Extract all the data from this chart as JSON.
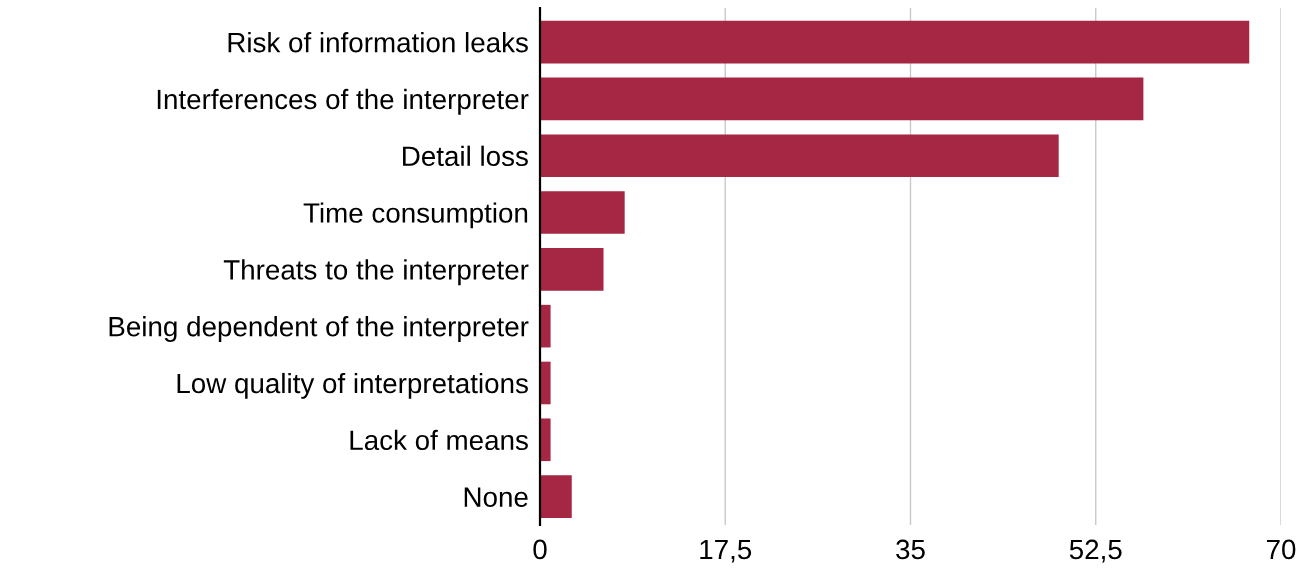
{
  "chart_data": {
    "type": "bar",
    "orientation": "horizontal",
    "categories": [
      "Risk of information leaks",
      "Interferences of the interpreter",
      "Detail loss",
      "Time consumption",
      "Threats to the interpreter",
      "Being dependent of the interpreter",
      "Low quality of interpretations",
      "Lack of means",
      "None"
    ],
    "values": [
      67,
      57,
      49,
      8,
      6,
      1,
      1,
      1,
      3
    ],
    "color": "#a52743",
    "xlim": [
      0,
      70
    ],
    "xticks": [
      0,
      {
        "value": 17.5,
        "label": "17,5"
      },
      35,
      {
        "value": 52.5,
        "label": "52,5"
      },
      70
    ],
    "grid": "x"
  }
}
